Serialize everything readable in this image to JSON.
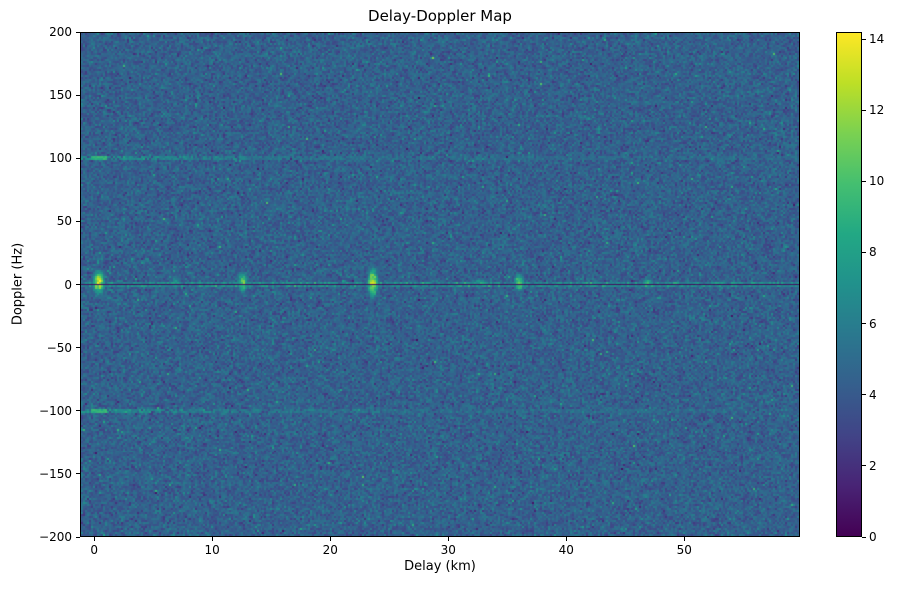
{
  "figure": {
    "background": "#ffffff"
  },
  "chart_data": {
    "type": "heatmap",
    "title": "Delay-Doppler Map",
    "xlabel": "Delay (km)",
    "ylabel": "Doppler (Hz)",
    "x_range": [
      -1.2,
      59.8
    ],
    "y_range": [
      -200,
      200
    ],
    "x_ticks": [
      0,
      10,
      20,
      30,
      40,
      50
    ],
    "y_ticks": [
      200,
      150,
      100,
      50,
      0,
      -50,
      -100,
      -150,
      -200
    ],
    "grid": false,
    "legend": "none",
    "colorbar": {
      "vmin": 0,
      "vmax": 14.2,
      "ticks": [
        0,
        2,
        4,
        6,
        8,
        10,
        12,
        14
      ],
      "colormap": "viridis",
      "colormap_stops": [
        "#440154",
        "#482475",
        "#414487",
        "#355f8d",
        "#2a788e",
        "#21918c",
        "#22a884",
        "#44bf70",
        "#7ad151",
        "#bddf26",
        "#fde725"
      ]
    },
    "noise_floor": {
      "mean": 4.4,
      "std": 0.85,
      "seed": 42
    },
    "zero_doppler_line": {
      "doppler_hz": 0,
      "half_width_hz": 0.85,
      "value": 0.3
    },
    "clutter_ridge": {
      "center_doppler_hz": 0,
      "half_width_hz": 2.5,
      "base_value": 6.2
    },
    "targets": [
      {
        "delay_km": 0.3,
        "doppler_hz": 1.5,
        "peak": 14.0,
        "delay_sigma_km": 0.4,
        "doppler_sigma_hz": 8
      },
      {
        "delay_km": 6.8,
        "doppler_hz": 1.5,
        "peak": 8.0,
        "delay_sigma_km": 0.3,
        "doppler_sigma_hz": 6
      },
      {
        "delay_km": 12.5,
        "doppler_hz": 1.5,
        "peak": 12.0,
        "delay_sigma_km": 0.35,
        "doppler_sigma_hz": 7
      },
      {
        "delay_km": 23.6,
        "doppler_hz": 1.5,
        "peak": 14.0,
        "delay_sigma_km": 0.35,
        "doppler_sigma_hz": 10
      },
      {
        "delay_km": 32.7,
        "doppler_hz": 1.0,
        "peak": 8.5,
        "delay_sigma_km": 0.8,
        "doppler_sigma_hz": 3.5
      },
      {
        "delay_km": 36.0,
        "doppler_hz": 1.5,
        "peak": 12.5,
        "delay_sigma_km": 0.35,
        "doppler_sigma_hz": 6
      },
      {
        "delay_km": 47.0,
        "doppler_hz": 1.0,
        "peak": 9.5,
        "delay_sigma_km": 0.35,
        "doppler_sigma_hz": 4
      },
      {
        "delay_km": 53.5,
        "doppler_hz": 1.0,
        "peak": 7.0,
        "delay_sigma_km": 0.3,
        "doppler_sigma_hz": 3
      }
    ],
    "ambiguity_lines_hz": [
      100,
      -100
    ]
  }
}
